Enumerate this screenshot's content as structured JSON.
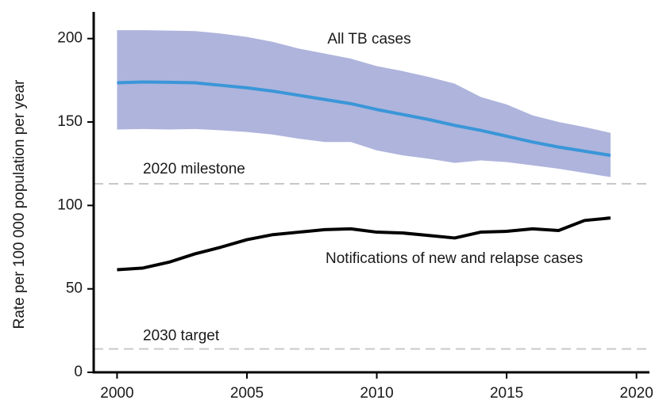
{
  "chart_data": {
    "type": "line",
    "y_label": "Rate per 100 000 population per year",
    "x": [
      2000,
      2001,
      2002,
      2003,
      2004,
      2005,
      2006,
      2007,
      2008,
      2009,
      2010,
      2011,
      2012,
      2013,
      2014,
      2015,
      2016,
      2017,
      2018,
      2019
    ],
    "series": [
      {
        "name": "All TB cases",
        "color": "#3a96d8",
        "band_color": "#aeb4dc",
        "values": [
          173.5,
          174,
          173.8,
          173.5,
          172,
          170.5,
          168.5,
          166,
          163.5,
          161,
          157.5,
          154.5,
          151.5,
          148,
          145,
          141.5,
          138,
          135,
          132.5,
          130
        ],
        "upper": [
          205,
          205,
          204.8,
          204.5,
          203,
          201,
          198,
          194,
          191,
          188,
          183.5,
          180.5,
          177,
          173,
          165,
          160.5,
          154,
          150,
          147,
          143.5
        ],
        "lower": [
          145.5,
          145.8,
          145.5,
          145.8,
          145,
          144,
          142.5,
          140,
          138,
          138,
          133,
          130,
          128,
          125.5,
          127,
          126,
          124,
          122,
          119.5,
          117
        ]
      },
      {
        "name": "Notifications of new and relapse cases",
        "color": "#000000",
        "values": [
          61.5,
          62.5,
          66,
          71,
          75,
          79.5,
          82.5,
          84,
          85.5,
          86,
          84,
          83.5,
          82,
          80.5,
          84,
          84.5,
          86,
          85,
          91,
          92.5
        ]
      }
    ],
    "reference_lines": [
      {
        "label": "2020 milestone",
        "value": 113
      },
      {
        "label": "2030 target",
        "value": 14
      }
    ],
    "xlim": [
      1999.1,
      2020.5
    ],
    "xticks": [
      2000,
      2005,
      2010,
      2015,
      2020
    ],
    "ylim": [
      0,
      216
    ],
    "yticks": [
      0,
      50,
      100,
      150,
      200
    ]
  }
}
